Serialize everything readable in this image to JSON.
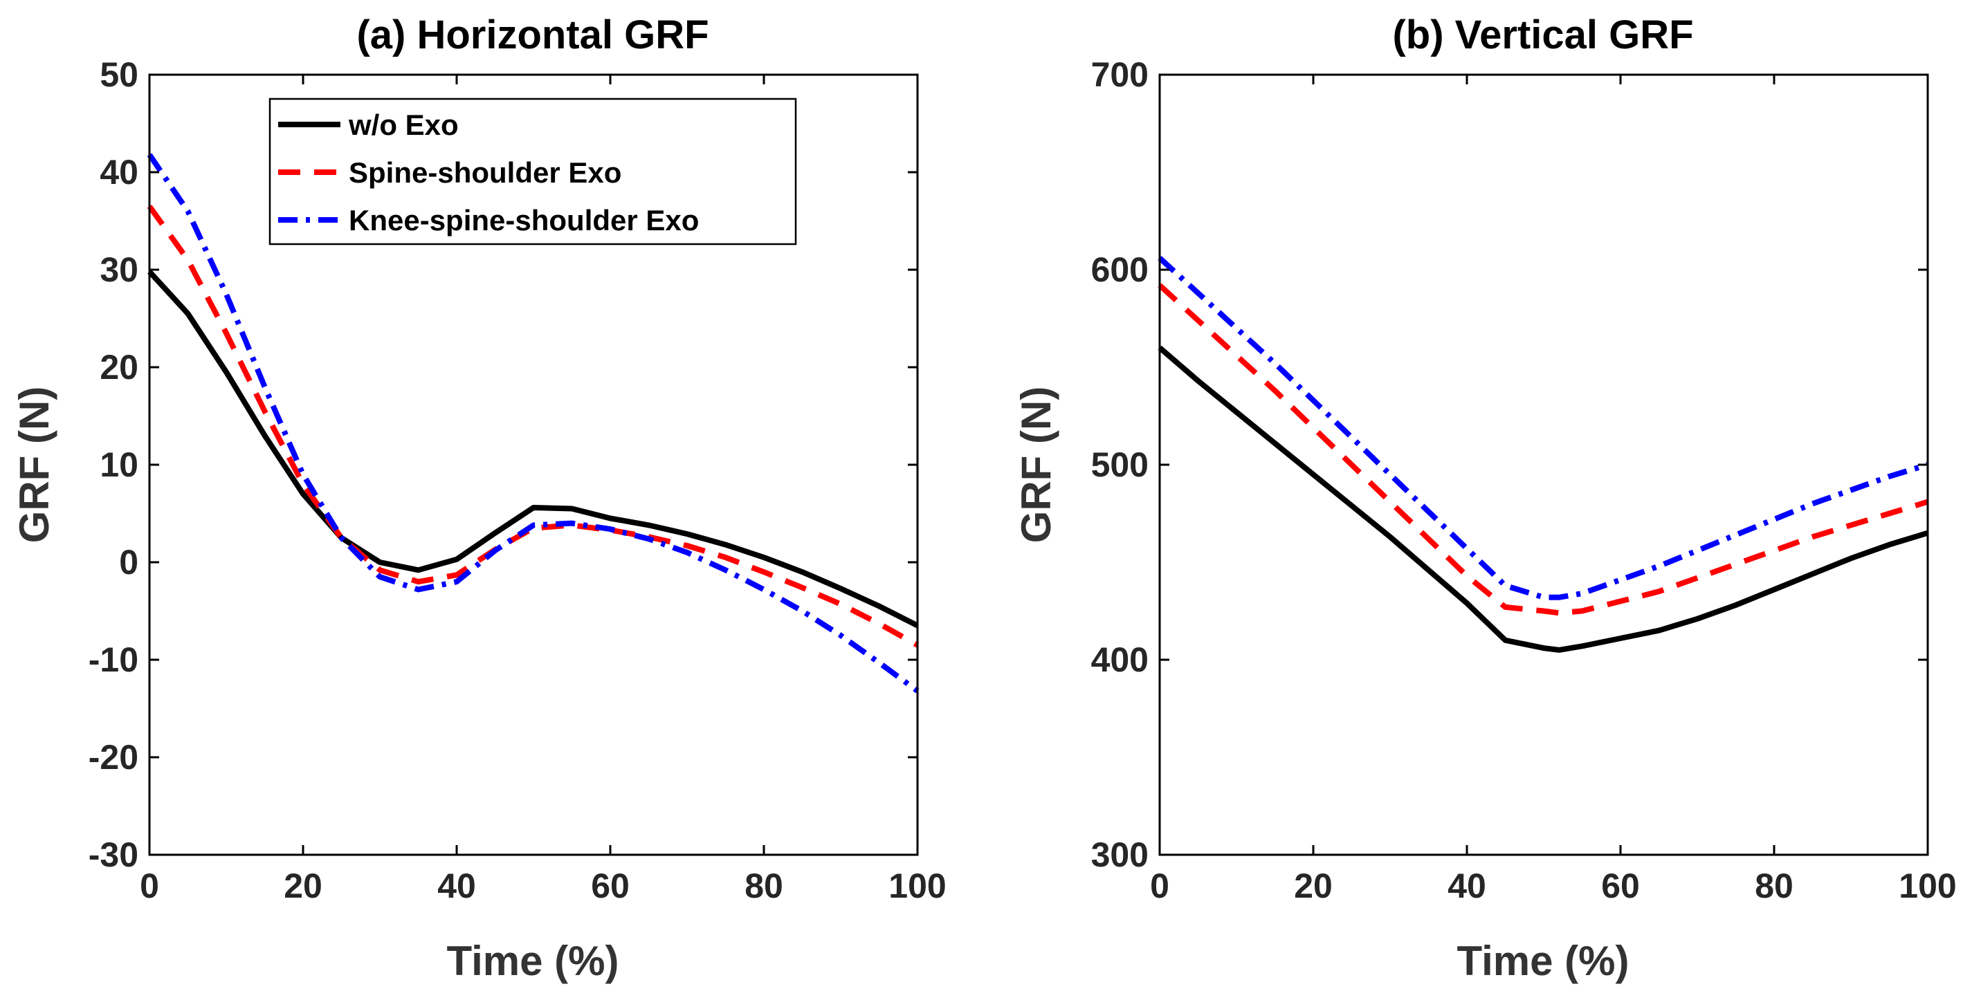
{
  "figure": {
    "background": "#ffffff",
    "axis_color": "#000000"
  },
  "chart_data": [
    {
      "type": "line",
      "title": "(a) Horizontal GRF",
      "xlabel": "Time (%)",
      "ylabel": "GRF (N)",
      "xlim": [
        0,
        100
      ],
      "ylim": [
        -30,
        50
      ],
      "xticks": [
        0,
        20,
        40,
        60,
        80,
        100
      ],
      "yticks": [
        -30,
        -20,
        -10,
        0,
        10,
        20,
        30,
        40,
        50
      ],
      "grid": false,
      "legend": {
        "position": "top",
        "entries": [
          "w/o Exo",
          "Spine-shoulder Exo",
          "Knee-spine-shoulder Exo"
        ]
      },
      "x": [
        0,
        5,
        10,
        15,
        20,
        25,
        30,
        35,
        40,
        45,
        50,
        55,
        60,
        65,
        70,
        75,
        80,
        85,
        90,
        95,
        100
      ],
      "series": [
        {
          "name": "w/o Exo",
          "color": "#000000",
          "style": "solid",
          "values": [
            29.8,
            25.5,
            19.5,
            13.0,
            7.0,
            2.5,
            0.0,
            -0.8,
            0.3,
            3.0,
            5.6,
            5.5,
            4.5,
            3.8,
            2.9,
            1.8,
            0.5,
            -1.0,
            -2.7,
            -4.5,
            -6.5
          ]
        },
        {
          "name": "Spine-shoulder Exo",
          "color": "#ff0000",
          "style": "dashed",
          "values": [
            36.5,
            31.0,
            23.5,
            15.5,
            8.0,
            2.5,
            -0.8,
            -2.0,
            -1.3,
            1.3,
            3.5,
            3.8,
            3.3,
            2.6,
            1.7,
            0.5,
            -1.0,
            -2.6,
            -4.3,
            -6.3,
            -8.5
          ]
        },
        {
          "name": "Knee-spine-shoulder Exo",
          "color": "#0000ff",
          "style": "dashdot",
          "values": [
            41.8,
            36.0,
            27.5,
            18.0,
            9.0,
            2.5,
            -1.5,
            -2.8,
            -2.0,
            1.2,
            3.8,
            4.0,
            3.4,
            2.4,
            1.0,
            -0.8,
            -2.8,
            -5.0,
            -7.5,
            -10.3,
            -13.2
          ]
        }
      ]
    },
    {
      "type": "line",
      "title": "(b) Vertical GRF",
      "xlabel": "Time (%)",
      "ylabel": "GRF (N)",
      "xlim": [
        0,
        100
      ],
      "ylim": [
        300,
        700
      ],
      "xticks": [
        0,
        20,
        40,
        60,
        80,
        100
      ],
      "yticks": [
        300,
        400,
        500,
        600,
        700
      ],
      "grid": false,
      "x": [
        0,
        5,
        10,
        15,
        20,
        25,
        30,
        35,
        40,
        45,
        50,
        52,
        55,
        60,
        65,
        70,
        75,
        80,
        85,
        90,
        95,
        100
      ],
      "series": [
        {
          "name": "w/o Exo",
          "color": "#000000",
          "style": "solid",
          "values": [
            560,
            543,
            527,
            511,
            495,
            479,
            463,
            446,
            429,
            410,
            406,
            405,
            407,
            411,
            415,
            421,
            428,
            436,
            444,
            452,
            459,
            465
          ]
        },
        {
          "name": "Spine-shoulder Exo",
          "color": "#ff0000",
          "style": "dashed",
          "values": [
            592,
            574,
            556,
            538,
            519,
            500,
            481,
            462,
            443,
            427,
            425,
            424,
            425,
            430,
            435,
            442,
            449,
            456,
            463,
            469,
            475,
            481
          ]
        },
        {
          "name": "Knee-spine-shoulder Exo",
          "color": "#0000ff",
          "style": "dashdot",
          "values": [
            606,
            588,
            570,
            552,
            533,
            514,
            495,
            476,
            457,
            438,
            432,
            432,
            434,
            441,
            448,
            456,
            464,
            472,
            480,
            487,
            494,
            500
          ]
        }
      ]
    }
  ]
}
